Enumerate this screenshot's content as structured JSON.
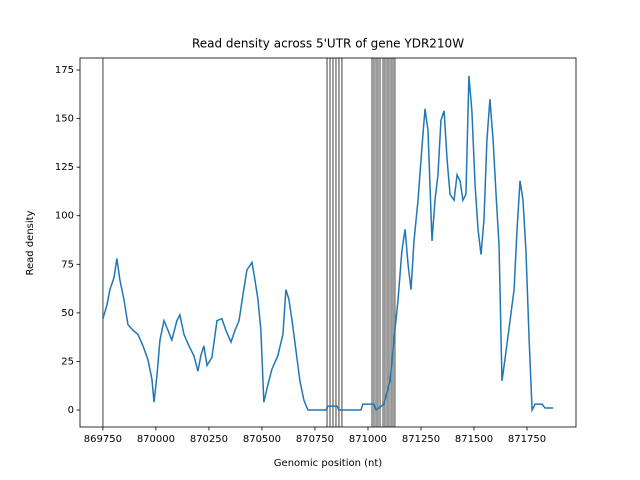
{
  "chart_data": {
    "type": "line",
    "title": "Read density across 5'UTR of gene YDR210W",
    "xlabel": "Genomic position (nt)",
    "ylabel": "Read density",
    "xlim": [
      869642,
      871981
    ],
    "ylim": [
      -8.75,
      181.2
    ],
    "xticks": [
      869750,
      870000,
      870250,
      870500,
      870750,
      871000,
      871250,
      871500,
      871750
    ],
    "yticks": [
      0,
      25,
      50,
      75,
      100,
      125,
      150,
      175
    ],
    "vlines": [
      869750,
      870807,
      870821,
      870835,
      870849,
      870863,
      870877,
      871019,
      871028,
      871038,
      871047,
      871057,
      871071,
      871080,
      871090,
      871099,
      871109,
      871118,
      871127
    ],
    "vline_color": "#000000",
    "series": [
      {
        "name": "Read density",
        "color": "#1f77b4",
        "x": [
          869750,
          869769,
          869783,
          869802,
          869816,
          869830,
          869849,
          869868,
          869892,
          869915,
          869939,
          869962,
          869981,
          869991,
          870005,
          870019,
          870038,
          870057,
          870075,
          870099,
          870113,
          870132,
          870156,
          870179,
          870198,
          870212,
          870226,
          870241,
          870264,
          870288,
          870311,
          870330,
          870354,
          870373,
          870392,
          870410,
          870429,
          870453,
          870467,
          870481,
          870495,
          870509,
          870528,
          870547,
          870575,
          870599,
          870613,
          870627,
          870642,
          870660,
          870679,
          870698,
          870717,
          870802,
          870811,
          870854,
          870863,
          870967,
          870976,
          871028,
          871038,
          871075,
          871104,
          871127,
          871142,
          871160,
          871175,
          871189,
          871203,
          871217,
          871236,
          871255,
          871269,
          871283,
          871302,
          871316,
          871330,
          871344,
          871359,
          871373,
          871387,
          871406,
          871420,
          871434,
          871448,
          871462,
          871476,
          871490,
          871505,
          871519,
          871533,
          871547,
          871561,
          871575,
          871590,
          871604,
          871618,
          871632,
          871646,
          871670,
          871689,
          871703,
          871717,
          871731,
          871745,
          871760,
          871774,
          871788,
          871821,
          871835,
          871873
        ],
        "values": [
          47,
          54,
          62,
          68,
          78,
          67,
          57,
          44,
          41,
          39,
          33,
          26,
          16,
          4,
          18,
          36,
          46,
          41,
          36,
          46,
          49,
          39,
          33,
          28,
          20,
          28,
          33,
          23,
          27,
          46,
          47,
          41,
          35,
          41,
          46,
          59,
          72,
          76,
          67,
          57,
          41,
          4,
          13,
          21,
          28,
          39,
          62,
          57,
          46,
          31,
          15,
          5,
          0,
          0,
          2,
          2,
          0,
          0,
          3,
          3,
          0,
          3,
          15,
          41,
          57,
          82,
          93,
          75,
          62,
          87,
          108,
          136,
          155,
          144,
          87,
          108,
          121,
          149,
          154,
          129,
          111,
          108,
          121,
          118,
          108,
          111,
          172,
          154,
          116,
          93,
          80,
          98,
          139,
          160,
          139,
          111,
          85,
          15,
          26,
          46,
          62,
          93,
          118,
          108,
          82,
          36,
          0,
          3,
          3,
          1,
          1
        ]
      }
    ]
  }
}
